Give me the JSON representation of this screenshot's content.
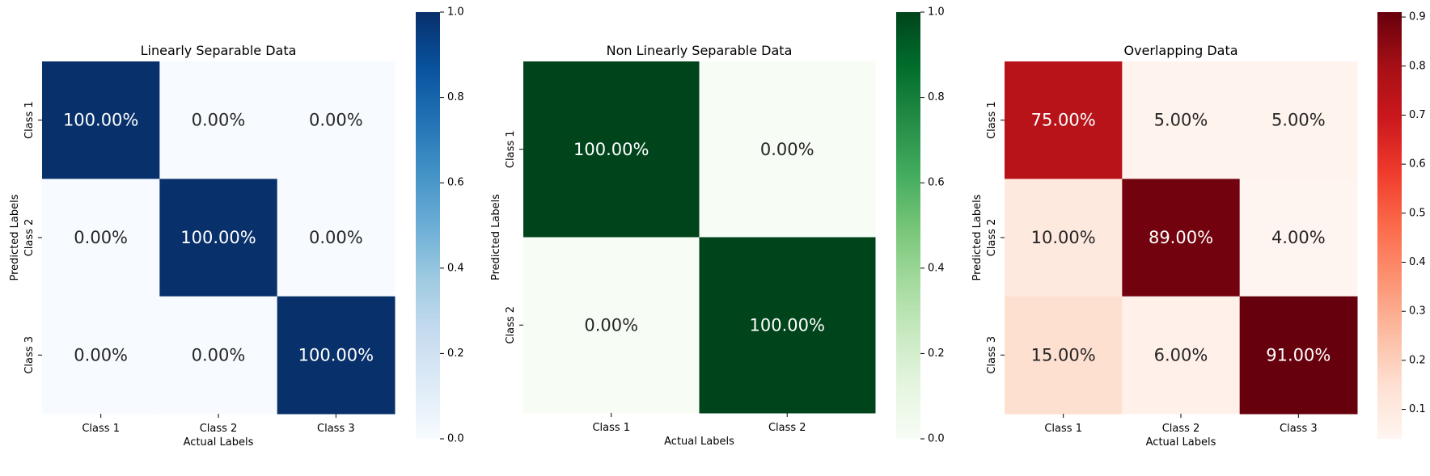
{
  "chart_data": [
    {
      "type": "heatmap",
      "title": "Linearly Separable Data",
      "xlabel": "Actual Labels",
      "ylabel": "Predicted Labels",
      "x_categories": [
        "Class 1",
        "Class 2",
        "Class 3"
      ],
      "y_categories": [
        "Class 1",
        "Class 2",
        "Class 3"
      ],
      "values": [
        [
          1.0,
          0.0,
          0.0
        ],
        [
          0.0,
          1.0,
          0.0
        ],
        [
          0.0,
          0.0,
          1.0
        ]
      ],
      "annotations": [
        [
          "100.00%",
          "0.00%",
          "0.00%"
        ],
        [
          "0.00%",
          "100.00%",
          "0.00%"
        ],
        [
          "0.00%",
          "0.00%",
          "100.00%"
        ]
      ],
      "colormap": "Blues",
      "color_low": "#f7fbff",
      "color_high": "#08306b",
      "vmin": 0.0,
      "vmax": 1.0,
      "colorbar_ticks": [
        {
          "value": 0.0,
          "label": "0.0"
        },
        {
          "value": 0.2,
          "label": "0.2"
        },
        {
          "value": 0.4,
          "label": "0.4"
        },
        {
          "value": 0.6,
          "label": "0.6"
        },
        {
          "value": 0.8,
          "label": "0.8"
        },
        {
          "value": 1.0,
          "label": "1.0"
        }
      ]
    },
    {
      "type": "heatmap",
      "title": "Non Linearly Separable Data",
      "xlabel": "Actual Labels",
      "ylabel": "Predicted Labels",
      "x_categories": [
        "Class 1",
        "Class 2"
      ],
      "y_categories": [
        "Class 1",
        "Class 2"
      ],
      "values": [
        [
          1.0,
          0.0
        ],
        [
          0.0,
          1.0
        ]
      ],
      "annotations": [
        [
          "100.00%",
          "0.00%"
        ],
        [
          "0.00%",
          "100.00%"
        ]
      ],
      "colormap": "Greens",
      "color_low": "#f7fcf5",
      "color_high": "#00441b",
      "vmin": 0.0,
      "vmax": 1.0,
      "colorbar_ticks": [
        {
          "value": 0.0,
          "label": "0.0"
        },
        {
          "value": 0.2,
          "label": "0.2"
        },
        {
          "value": 0.4,
          "label": "0.4"
        },
        {
          "value": 0.6,
          "label": "0.6"
        },
        {
          "value": 0.8,
          "label": "0.8"
        },
        {
          "value": 1.0,
          "label": "1.0"
        }
      ]
    },
    {
      "type": "heatmap",
      "title": "Overlapping Data",
      "xlabel": "Actual Labels",
      "ylabel": "Predicted Labels",
      "x_categories": [
        "Class 1",
        "Class 2",
        "Class 3"
      ],
      "y_categories": [
        "Class 1",
        "Class 2",
        "Class 3"
      ],
      "values": [
        [
          0.75,
          0.05,
          0.05
        ],
        [
          0.1,
          0.89,
          0.04
        ],
        [
          0.15,
          0.06,
          0.91
        ]
      ],
      "annotations": [
        [
          "75.00%",
          "5.00%",
          "5.00%"
        ],
        [
          "10.00%",
          "89.00%",
          "4.00%"
        ],
        [
          "15.00%",
          "6.00%",
          "91.00%"
        ]
      ],
      "colormap": "Reds",
      "color_low": "#fff5f0",
      "color_high": "#67000d",
      "vmin": 0.04,
      "vmax": 0.91,
      "colorbar_ticks": [
        {
          "value": 0.1,
          "label": "0.1"
        },
        {
          "value": 0.2,
          "label": "0.2"
        },
        {
          "value": 0.3,
          "label": "0.3"
        },
        {
          "value": 0.4,
          "label": "0.4"
        },
        {
          "value": 0.5,
          "label": "0.5"
        },
        {
          "value": 0.6,
          "label": "0.6"
        },
        {
          "value": 0.7,
          "label": "0.7"
        },
        {
          "value": 0.8,
          "label": "0.8"
        },
        {
          "value": 0.9,
          "label": "0.9"
        }
      ]
    }
  ],
  "colormaps": {
    "Blues": [
      "#f7fbff",
      "#deebf7",
      "#c6dbef",
      "#9ecae1",
      "#6baed6",
      "#4292c6",
      "#2171b5",
      "#08519c",
      "#08306b"
    ],
    "Greens": [
      "#f7fcf5",
      "#e5f5e0",
      "#c7e9c0",
      "#a1d99b",
      "#74c476",
      "#41ab5d",
      "#238b45",
      "#006d2c",
      "#00441b"
    ],
    "Reds": [
      "#fff5f0",
      "#fee0d2",
      "#fcbba1",
      "#fc9272",
      "#fb6a4a",
      "#ef3b2c",
      "#cb181d",
      "#a50f15",
      "#67000d"
    ]
  }
}
